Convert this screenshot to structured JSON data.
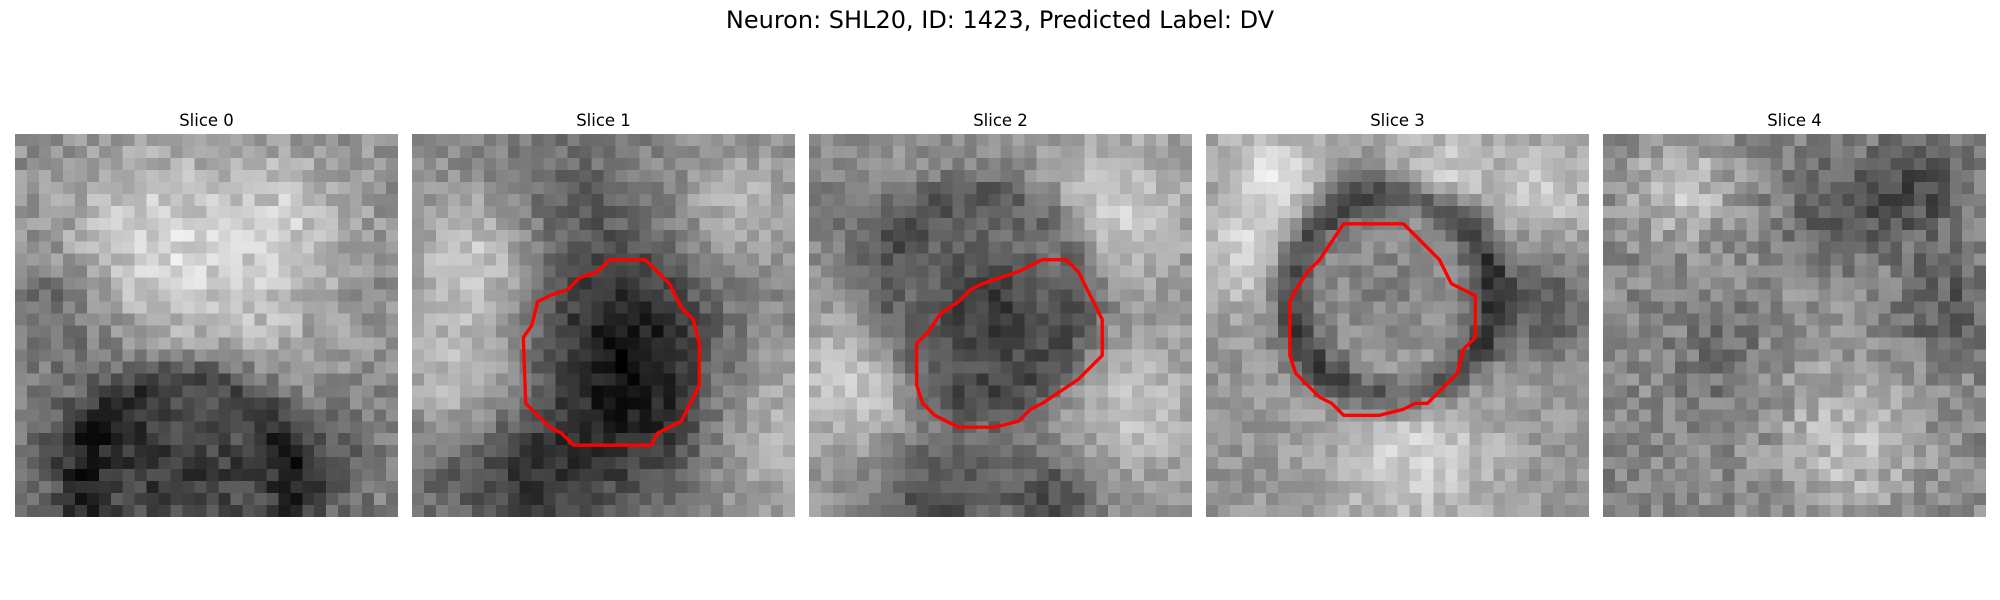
{
  "figure": {
    "title": "Neuron: SHL20, ID: 1423, Predicted Label: DV",
    "contour_color": "#ff0000"
  },
  "slices": [
    {
      "label": "Slice 0",
      "has_contour": false
    },
    {
      "label": "Slice 1",
      "has_contour": true
    },
    {
      "label": "Slice 2",
      "has_contour": true
    },
    {
      "label": "Slice 3",
      "has_contour": true
    },
    {
      "label": "Slice 4",
      "has_contour": false
    }
  ]
}
